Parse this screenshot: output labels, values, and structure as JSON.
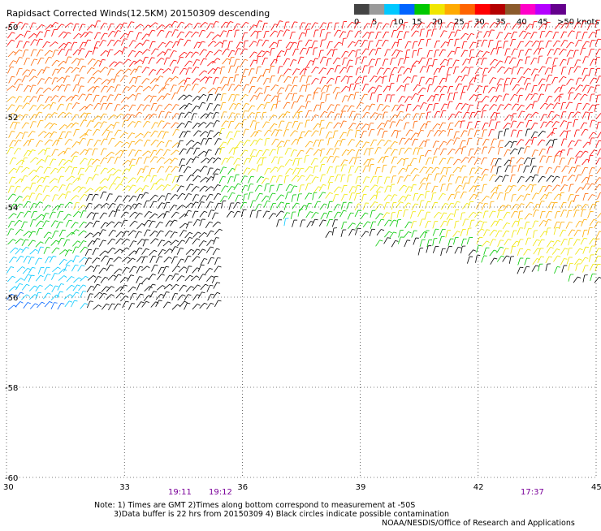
{
  "title": "Rapidsact Corrected Winds(12.5KM) 20150309 descending",
  "colorbar": {
    "labels": [
      "0",
      "5",
      "10",
      "15",
      "20",
      "25",
      "30",
      "35",
      "40",
      "45",
      ">50 knots"
    ],
    "colors": [
      "#444444",
      "#9a9a9a",
      "#00c8ff",
      "#0064ff",
      "#00c800",
      "#f0e600",
      "#ffaa00",
      "#ff6400",
      "#ff0000",
      "#b40000",
      "#8b5a2b",
      "#ff00c8",
      "#b400ff",
      "#64008c"
    ]
  },
  "y_ticks": [
    "-50",
    "-52",
    "-54",
    "-56",
    "-58",
    "-60"
  ],
  "x_ticks": [
    "30",
    "33",
    "36",
    "39",
    "42",
    "45"
  ],
  "pass_times": [
    "19:11",
    "19:12",
    "17:37"
  ],
  "note_line1": "Note: 1) Times are GMT 2)Times along bottom correspond to measurement at -50S",
  "note_line2": "3)Data buffer is 22 hrs from 20150309 4) Black circles indicate possible contamination",
  "credit": "NOAA/NESDIS/Office of Research and Applications",
  "chart_data": {
    "type": "heatmap",
    "title": "Rapidsact Corrected Winds(12.5KM) 20150309 descending",
    "x_range": [
      30,
      45
    ],
    "y_range": [
      -60,
      -50
    ],
    "grid": true,
    "units": "knots",
    "x_ticks": [
      30,
      33,
      36,
      39,
      42,
      45
    ],
    "y_ticks": [
      -50,
      -52,
      -54,
      -56,
      -58,
      -60
    ],
    "legend_placement": "top-right",
    "swaths": [
      {
        "lon": [
          30,
          35.3
        ],
        "lat": [
          -56.4,
          -50
        ],
        "time": "19:11"
      },
      {
        "lon": [
          35.3,
          45
        ],
        "lat": [
          -55.8,
          -50
        ],
        "time": "19:12"
      },
      {
        "lon": [
          42,
          45
        ],
        "lat": [
          -55.8,
          -50
        ],
        "time": "17:37"
      }
    ]
  }
}
